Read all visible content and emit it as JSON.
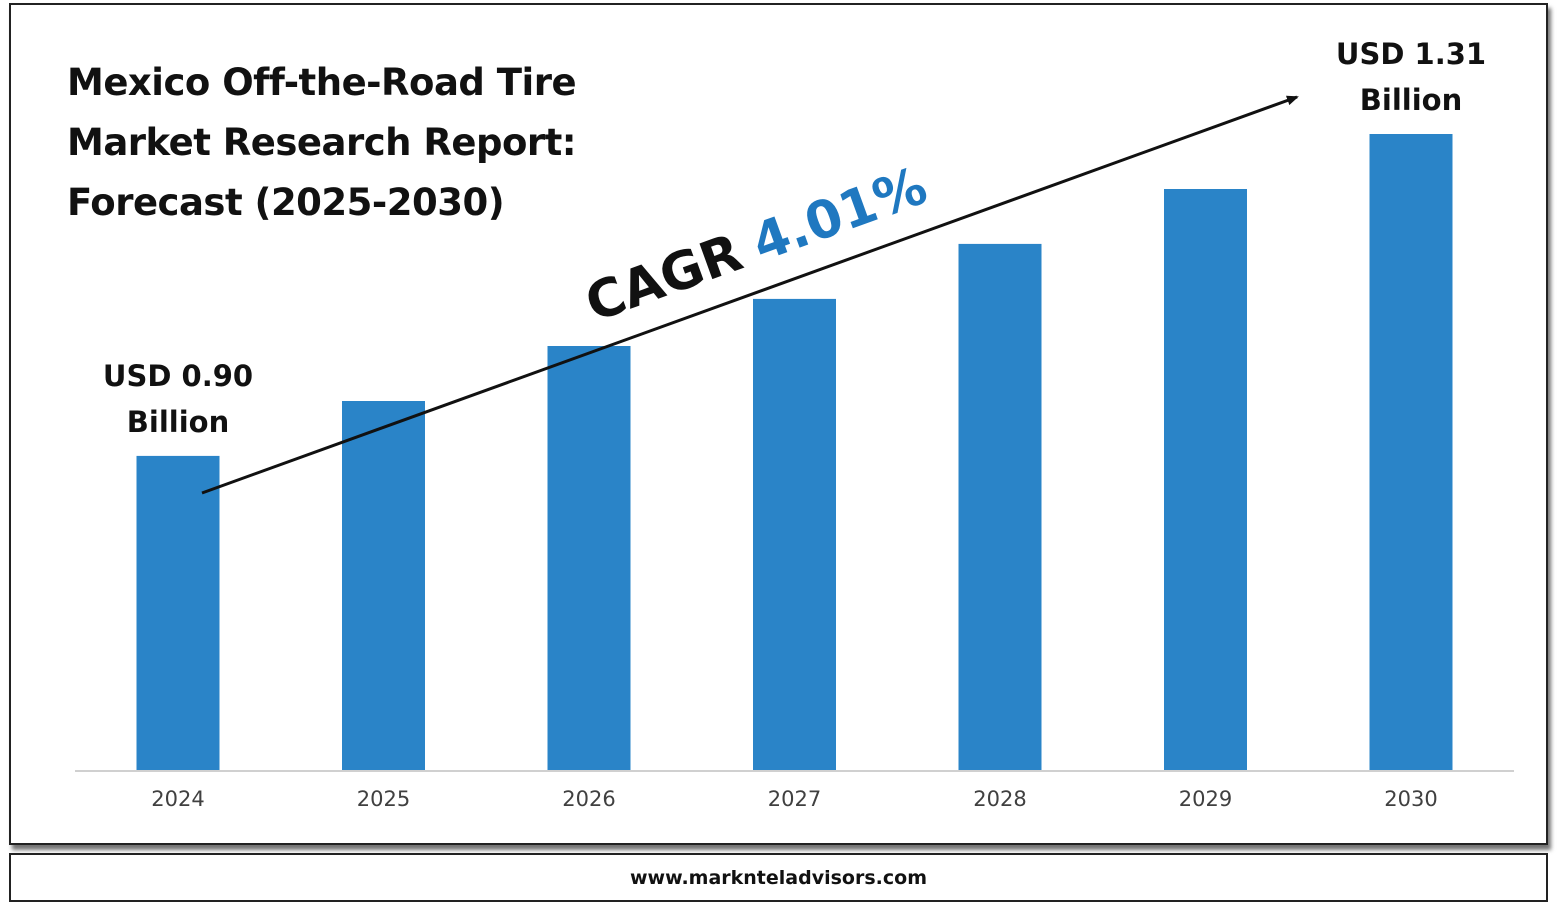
{
  "title_lines": [
    "Mexico Off-the-Road Tire",
    "Market Research Report:",
    "Forecast (2025-2030)"
  ],
  "cagr": {
    "label": "CAGR",
    "value": "4.01%"
  },
  "footer": {
    "url": "www.marknteladvisors.com"
  },
  "colors": {
    "bar": "#2a84c8",
    "cagr_value": "#1f78c0",
    "axis": "#d0d0d0",
    "text": "#111111",
    "tick": "#404040"
  },
  "chart_data": {
    "type": "bar",
    "categories": [
      "2024",
      "2025",
      "2026",
      "2027",
      "2028",
      "2029",
      "2030"
    ],
    "values": [
      0.9,
      0.97,
      1.04,
      1.1,
      1.17,
      1.24,
      1.31
    ],
    "unit": "USD Billion",
    "ylim": [
      0.5,
      1.31
    ],
    "grid": false,
    "annotations": [
      {
        "category": "2024",
        "lines": [
          "USD 0.90",
          "Billion"
        ]
      },
      {
        "category": "2030",
        "lines": [
          "USD 1.31",
          "Billion"
        ]
      }
    ]
  }
}
